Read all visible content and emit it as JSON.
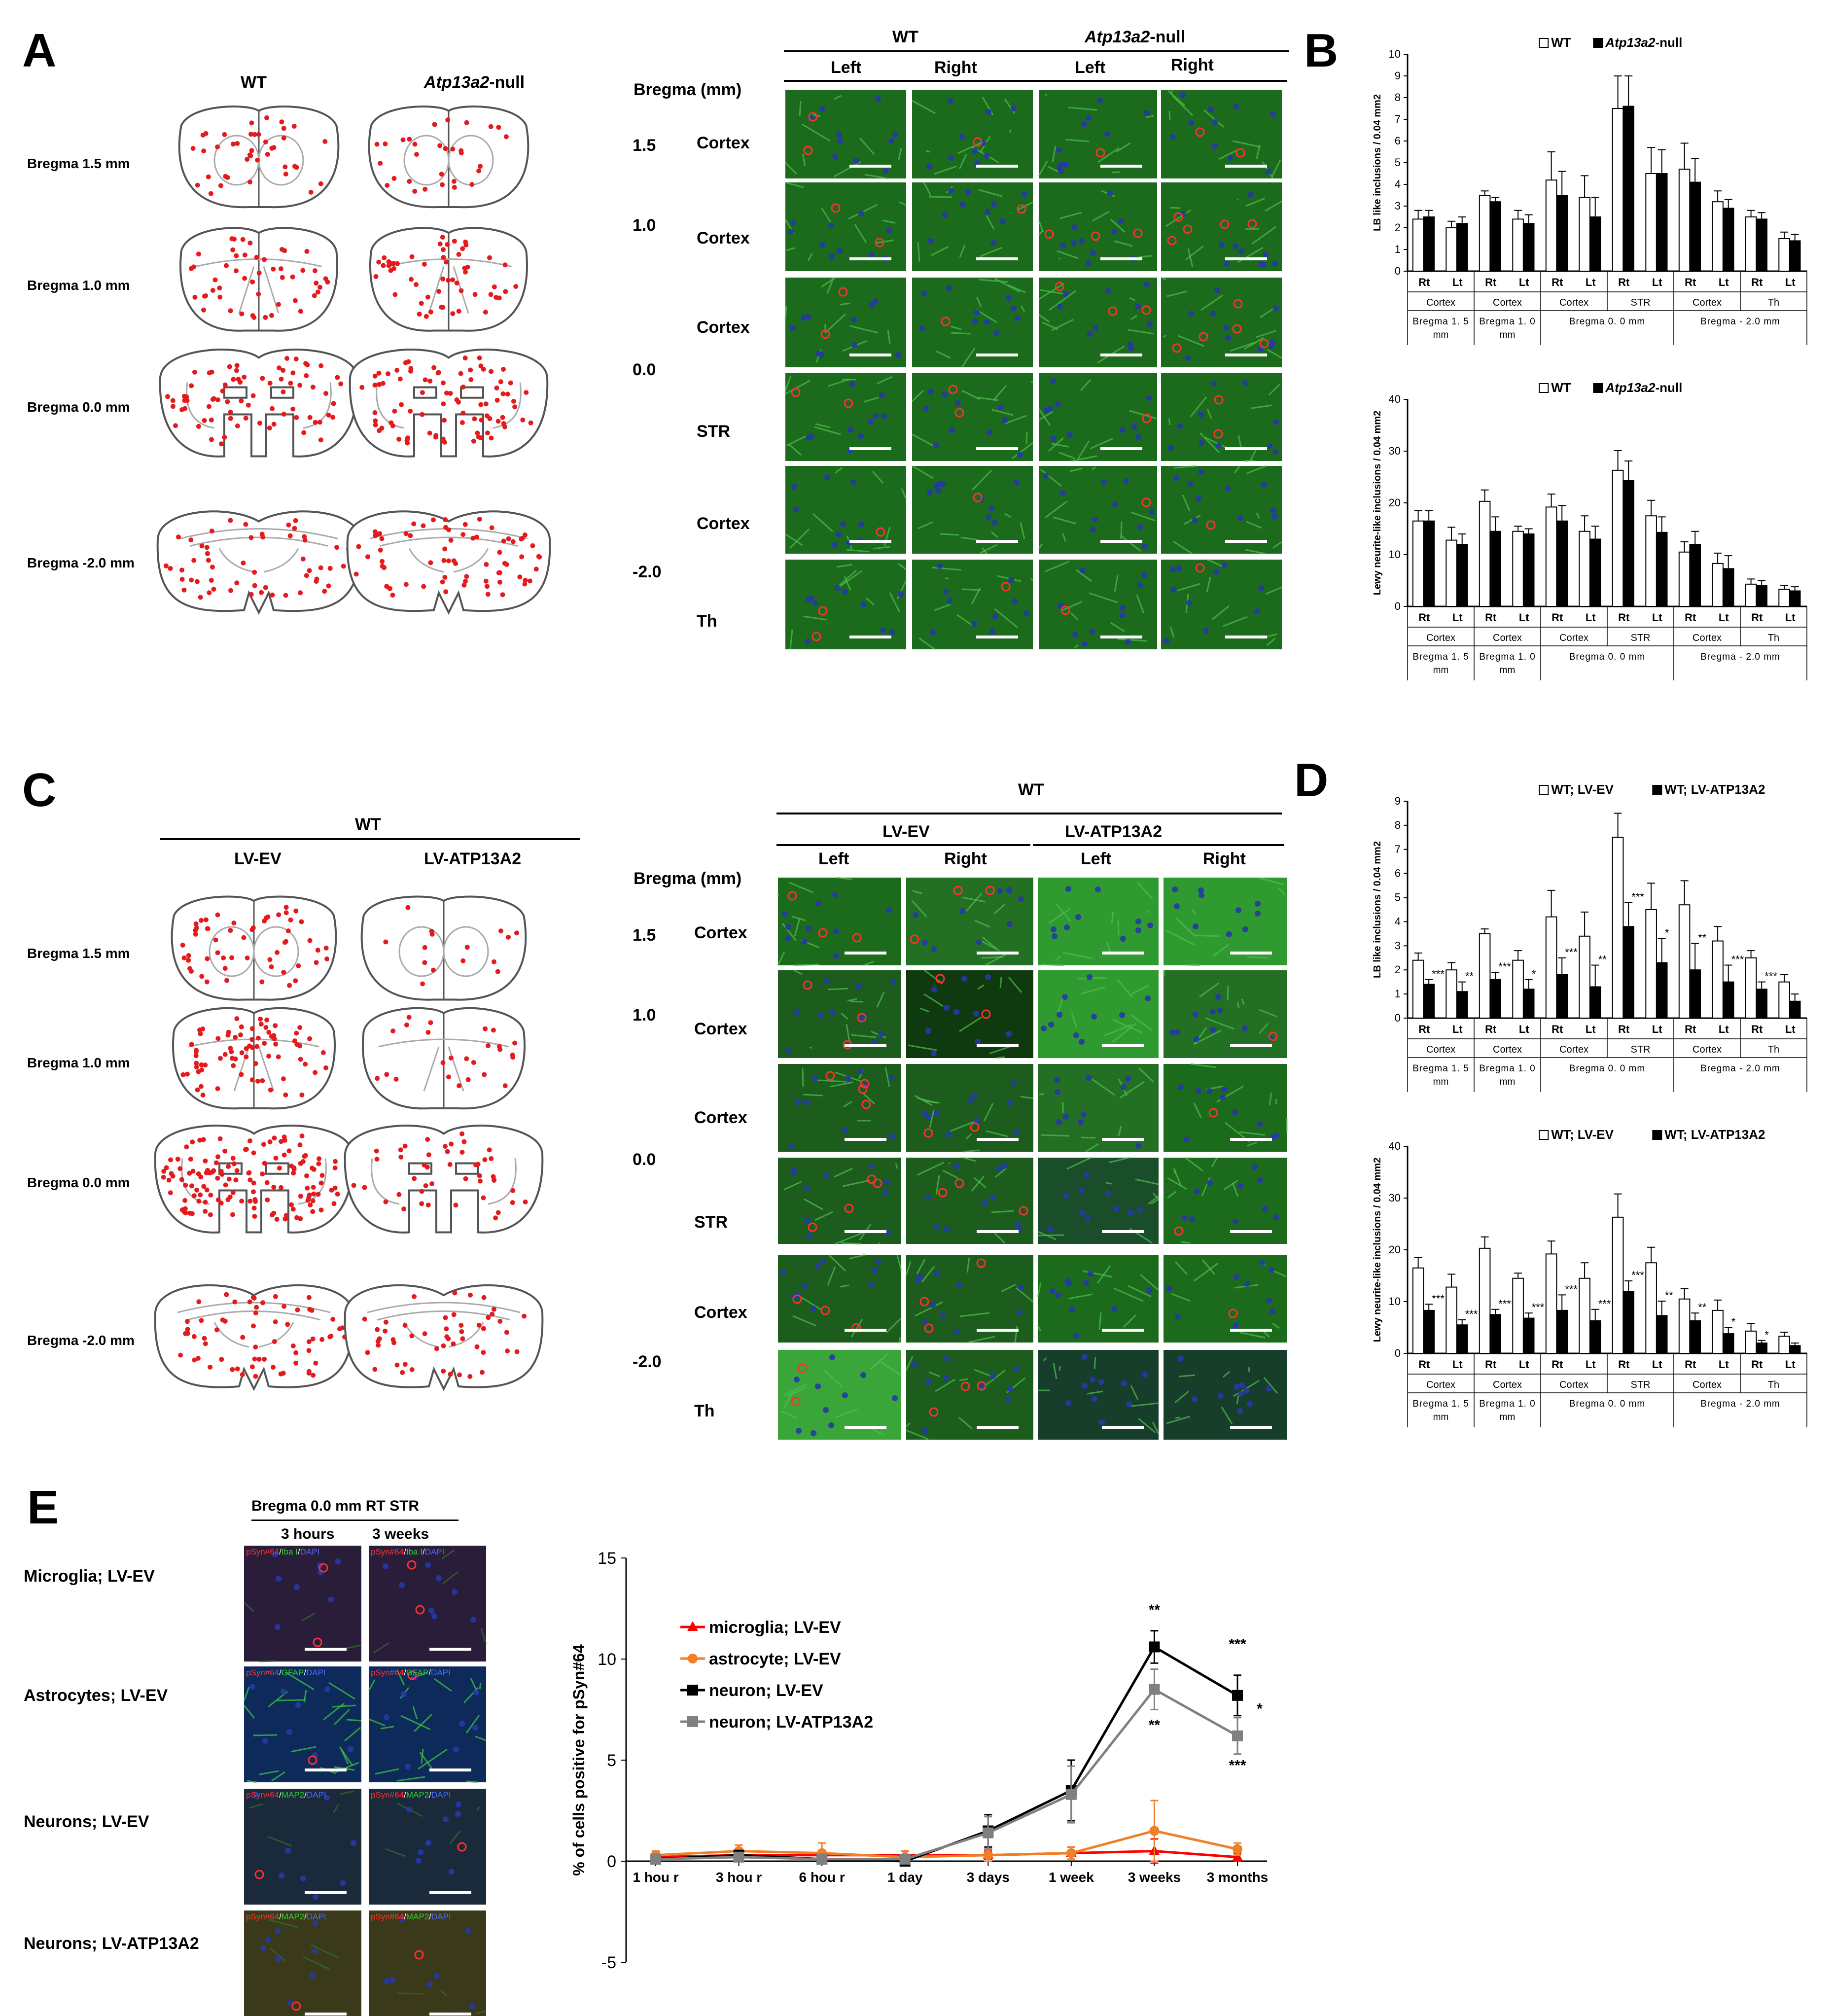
{
  "panels": {
    "A": "A",
    "B": "B",
    "C": "C",
    "D": "D",
    "E": "E"
  },
  "panelA": {
    "col_wt": "WT",
    "col_null_ital": "Atp13a2",
    "col_null_rest": "-null",
    "rows": [
      "Bregma 1.5 mm",
      "Bregma 1.0 mm",
      "Bregma 0.0 mm",
      "Bregma -2.0 mm"
    ],
    "grid": {
      "top_wt": "WT",
      "top_null_ital": "Atp13a2",
      "top_null_rest": "-null",
      "side": [
        "Left",
        "Right",
        "Left",
        "Right"
      ],
      "bregma_header": "Bregma (mm)",
      "bregma_values": [
        "1.5",
        "1.0",
        "0.0",
        "-2.0"
      ],
      "regions": [
        "Cortex",
        "Cortex",
        "Cortex",
        "STR",
        "Cortex",
        "Th"
      ]
    }
  },
  "panelC": {
    "top": "WT",
    "col1": "LV-EV",
    "col2": "LV-ATP13A2",
    "rows": [
      "Bregma 1.5 mm",
      "Bregma 1.0 mm",
      "Bregma 0.0 mm",
      "Bregma -2.0 mm"
    ],
    "grid": {
      "top": "WT",
      "group1": "LV-EV",
      "group2": "LV-ATP13A2",
      "side": [
        "Left",
        "Right",
        "Left",
        "Right"
      ],
      "bregma_header": "Bregma (mm)",
      "bregma_values": [
        "1.5",
        "1.0",
        "0.0",
        "-2.0"
      ],
      "regions": [
        "Cortex",
        "Cortex",
        "Cortex",
        "STR",
        "Cortex",
        "Th"
      ]
    }
  },
  "panelE": {
    "header": "Bregma 0.0 mm   RT STR",
    "col1": "3 hours",
    "col2": "3 weeks",
    "rows": [
      "Microglia; LV-EV",
      "Astrocytes; LV-EV",
      "Neurons; LV-EV",
      "Neurons; LV-ATP13A2"
    ],
    "stains": [
      {
        "a": "pSyn#64",
        "b": "Iba I",
        "c": "DAPI"
      },
      {
        "a": "pSyn#64",
        "b": "GFAP",
        "c": "DAPI"
      },
      {
        "a": "pSyn#64",
        "b": "MAP2",
        "c": "DAPI"
      },
      {
        "a": "pSyn#64",
        "b": "MAP2",
        "c": "DAPI"
      }
    ]
  },
  "colors": {
    "red_dot": "#e41a1c",
    "green_tissue": "#2f8c2f",
    "blue_nuclei": "#2638a8",
    "line_red": "#ff0000",
    "line_orange": "#f07f2a",
    "line_black": "#000000",
    "line_gray": "#808080"
  },
  "chart_data": [
    {
      "id": "B1",
      "type": "bar",
      "ylabel": "LB like inclusions / 0.04 mm2",
      "ylim": [
        0,
        10
      ],
      "yticks": [
        0,
        1,
        2,
        3,
        4,
        5,
        6,
        7,
        8,
        9,
        10
      ],
      "legend": [
        {
          "label": "WT",
          "fill": "#ffffff"
        },
        {
          "label_ital": "Atp13a2",
          "label": "-null",
          "fill": "#000000"
        }
      ],
      "categories": [
        "Rt",
        "Lt",
        "Rt",
        "Lt",
        "Rt",
        "Lt",
        "Rt",
        "Lt",
        "Rt",
        "Lt",
        "Rt",
        "Lt"
      ],
      "regions": [
        "Cortex",
        "Cortex",
        "Cortex",
        "STR",
        "Cortex",
        "Th"
      ],
      "bregma": [
        "Bregma 1. 5 mm",
        "Bregma 1. 0 mm",
        "Bregma 0. 0 mm",
        "Bregma - 2.0 mm"
      ],
      "series": [
        {
          "name": "WT",
          "values": [
            2.4,
            2.0,
            3.5,
            2.4,
            4.2,
            3.4,
            7.5,
            4.5,
            4.7,
            3.2,
            2.5,
            1.5
          ],
          "err": [
            0.4,
            0.3,
            0.2,
            0.4,
            1.3,
            1.0,
            1.5,
            1.2,
            1.2,
            0.5,
            0.3,
            0.3
          ]
        },
        {
          "name": "Atp13a2-null",
          "values": [
            2.5,
            2.2,
            3.2,
            2.2,
            3.5,
            2.5,
            7.6,
            4.5,
            4.1,
            2.9,
            2.4,
            1.4
          ],
          "err": [
            0.3,
            0.3,
            0.2,
            0.4,
            1.1,
            0.9,
            1.4,
            1.1,
            1.1,
            0.4,
            0.3,
            0.3
          ]
        }
      ]
    },
    {
      "id": "B2",
      "type": "bar",
      "ylabel": "Lewy neurite-like inclusions / 0.04 mm2",
      "ylim": [
        0,
        40
      ],
      "yticks": [
        0,
        10,
        20,
        30,
        40
      ],
      "legend": [
        {
          "label": "WT",
          "fill": "#ffffff"
        },
        {
          "label_ital": "Atp13a2",
          "label": "-null",
          "fill": "#000000"
        }
      ],
      "categories": [
        "Rt",
        "Lt",
        "Rt",
        "Lt",
        "Rt",
        "Lt",
        "Rt",
        "Lt",
        "Rt",
        "Lt",
        "Rt",
        "Lt"
      ],
      "regions": [
        "Cortex",
        "Cortex",
        "Cortex",
        "STR",
        "Cortex",
        "Th"
      ],
      "bregma": [
        "Bregma 1. 5 mm",
        "Bregma 1. 0 mm",
        "Bregma 0. 0 mm",
        "Bregma - 2.0 mm"
      ],
      "series": [
        {
          "name": "WT",
          "values": [
            16.5,
            12.8,
            20.3,
            14.5,
            19.2,
            14.5,
            26.3,
            17.5,
            10.5,
            8.3,
            4.3,
            3.3
          ],
          "err": [
            2.0,
            2.5,
            2.2,
            1.0,
            2.5,
            3.0,
            3.8,
            3.0,
            2.0,
            2.0,
            1.0,
            0.8
          ]
        },
        {
          "name": "Atp13a2-null",
          "values": [
            16.5,
            12.0,
            14.5,
            14.0,
            16.5,
            13.0,
            24.3,
            14.3,
            12.0,
            7.3,
            4.0,
            3.0
          ],
          "err": [
            2.0,
            2.0,
            2.8,
            1.0,
            3.0,
            2.5,
            3.8,
            3.0,
            2.5,
            2.5,
            1.0,
            0.8
          ]
        }
      ]
    },
    {
      "id": "D1",
      "type": "bar",
      "ylabel": "LB like inclusions / 0.04 mm2",
      "ylim": [
        0,
        9
      ],
      "yticks": [
        0,
        1,
        2,
        3,
        4,
        5,
        6,
        7,
        8,
        9
      ],
      "legend": [
        {
          "label": "WT; LV-EV",
          "fill": "#ffffff"
        },
        {
          "label": "WT; LV-ATP13A2",
          "fill": "#000000"
        }
      ],
      "categories": [
        "Rt",
        "Lt",
        "Rt",
        "Lt",
        "Rt",
        "Lt",
        "Rt",
        "Lt",
        "Rt",
        "Lt",
        "Rt",
        "Lt"
      ],
      "regions": [
        "Cortex",
        "Cortex",
        "Cortex",
        "STR",
        "Cortex",
        "Th"
      ],
      "bregma": [
        "Bregma 1. 5 mm",
        "Bregma 1. 0 mm",
        "Bregma 0. 0 mm",
        "Bregma - 2.0 mm"
      ],
      "series": [
        {
          "name": "WT; LV-EV",
          "values": [
            2.4,
            2.0,
            3.5,
            2.4,
            4.2,
            3.4,
            7.5,
            4.5,
            4.7,
            3.2,
            2.5,
            1.5
          ],
          "err": [
            0.3,
            0.3,
            0.2,
            0.4,
            1.1,
            1.0,
            1.0,
            1.1,
            1.0,
            0.6,
            0.3,
            0.3
          ]
        },
        {
          "name": "WT; LV-ATP13A2",
          "values": [
            1.4,
            1.1,
            1.6,
            1.2,
            1.8,
            1.3,
            3.8,
            2.3,
            2.0,
            1.5,
            1.2,
            0.7
          ],
          "err": [
            0.2,
            0.4,
            0.3,
            0.4,
            0.7,
            0.9,
            1.0,
            1.0,
            1.1,
            0.7,
            0.3,
            0.3
          ]
        }
      ],
      "sig": [
        "***",
        "**",
        "***",
        "*",
        "***",
        "**",
        "***",
        "*",
        "**",
        "***",
        "***",
        ""
      ]
    },
    {
      "id": "D2",
      "type": "bar",
      "ylabel": "Lewy neurite-like inclusions / 0.04 mm2",
      "ylim": [
        0,
        40
      ],
      "yticks": [
        0,
        10,
        20,
        30,
        40
      ],
      "legend": [
        {
          "label": "WT; LV-EV",
          "fill": "#ffffff"
        },
        {
          "label": "WT; LV-ATP13A2",
          "fill": "#000000"
        }
      ],
      "categories": [
        "Rt",
        "Lt",
        "Rt",
        "Lt",
        "Rt",
        "Lt",
        "Rt",
        "Lt",
        "Rt",
        "Lt",
        "Rt",
        "Lt"
      ],
      "regions": [
        "Cortex",
        "Cortex",
        "Cortex",
        "STR",
        "Cortex",
        "Th"
      ],
      "bregma": [
        "Bregma 1. 5 mm",
        "Bregma 1. 0 mm",
        "Bregma 0. 0 mm",
        "Bregma - 2.0 mm"
      ],
      "series": [
        {
          "name": "WT; LV-EV",
          "values": [
            16.5,
            12.8,
            20.3,
            14.5,
            19.2,
            14.5,
            26.3,
            17.5,
            10.5,
            8.3,
            4.3,
            3.3
          ],
          "err": [
            2.0,
            2.5,
            2.2,
            1.0,
            2.5,
            3.0,
            4.5,
            3.0,
            2.0,
            2.0,
            1.5,
            0.8
          ]
        },
        {
          "name": "WT; LV-ATP13A2",
          "values": [
            8.3,
            5.5,
            7.5,
            6.8,
            8.3,
            6.3,
            12.0,
            7.3,
            6.3,
            3.8,
            2.0,
            1.5
          ],
          "err": [
            1.2,
            1.0,
            1.0,
            1.0,
            3.0,
            2.2,
            2.0,
            2.8,
            1.5,
            1.2,
            0.5,
            0.5
          ]
        }
      ],
      "sig": [
        "***",
        "***",
        "***",
        "***",
        "***",
        "***",
        "***",
        "**",
        "**",
        "*",
        "*",
        ""
      ]
    },
    {
      "id": "E",
      "type": "line",
      "ylabel": "% of cells positive for pSyn#64",
      "ylim": [
        -5,
        15
      ],
      "yticks": [
        -5,
        0,
        5,
        10,
        15
      ],
      "categories": [
        "1 hou r",
        "3 hou r",
        "6 hou r",
        "1 day",
        "3 days",
        "1 week",
        "3 weeks",
        "3 months"
      ],
      "series": [
        {
          "name": "microglia; LV-EV",
          "color": "#ff0000",
          "marker": "triangle",
          "values": [
            0.2,
            0.3,
            0.3,
            0.3,
            0.3,
            0.4,
            0.5,
            0.2
          ],
          "err": [
            0.2,
            0.2,
            0.2,
            0.2,
            0.2,
            0.3,
            0.6,
            0.2
          ]
        },
        {
          "name": "astrocyte; LV-EV",
          "color": "#f07f2a",
          "marker": "circle",
          "values": [
            0.3,
            0.5,
            0.4,
            0.2,
            0.3,
            0.4,
            1.5,
            0.6
          ],
          "err": [
            0.2,
            0.3,
            0.5,
            0.3,
            0.3,
            0.3,
            1.5,
            0.3
          ]
        },
        {
          "name": "neuron; LV-EV",
          "color": "#000000",
          "marker": "square",
          "values": [
            0.1,
            0.3,
            0.1,
            0.0,
            1.5,
            3.5,
            10.6,
            8.2
          ],
          "err": [
            0.1,
            0.2,
            0.1,
            0.1,
            0.8,
            1.5,
            0.8,
            1.0
          ]
        },
        {
          "name": "neuron; LV-ATP13A2",
          "color": "#808080",
          "marker": "square",
          "values": [
            0.1,
            0.2,
            0.1,
            0.1,
            1.4,
            3.3,
            8.5,
            6.2
          ],
          "err": [
            0.1,
            0.2,
            0.1,
            0.1,
            0.8,
            1.4,
            1.0,
            0.9
          ]
        }
      ],
      "annotations": [
        {
          "text": "**",
          "x": "3 weeks",
          "y": 12.2
        },
        {
          "text": "**",
          "x": "3 weeks",
          "y": 6.5
        },
        {
          "text": "***",
          "x": "3 months",
          "y": 10.5
        },
        {
          "text": "*",
          "x": "3 months",
          "y": 7.3
        },
        {
          "text": "***",
          "x": "3 months",
          "y": 4.5
        }
      ]
    }
  ]
}
